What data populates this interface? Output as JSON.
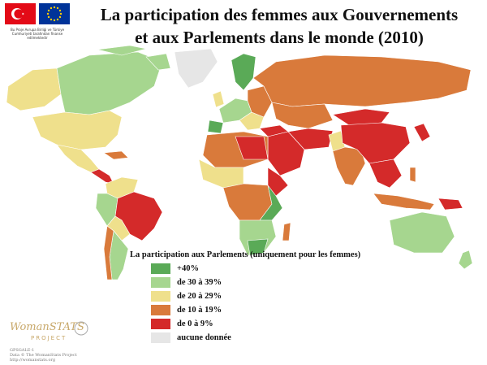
{
  "header": {
    "title_line1": "La participation des femmes aux Gouvernements",
    "title_line2": "et aux Parlements dans le monde (2010)",
    "logo_caption": "Bu Proje Avrupa Birliği ve Türkiye Cumhuriyeti tarafından finanse edilmektedir"
  },
  "colors": {
    "over40": "#5aaa57",
    "p30_39": "#a6d68f",
    "p20_29": "#efe08c",
    "p10_19": "#d97a3b",
    "p0_9": "#d42a2a",
    "no_data": "#e6e6e6",
    "ocean": "#ffffff"
  },
  "legend": {
    "title": "La participation aux Parlements (uniquement pour les femmes)",
    "items": [
      {
        "label": "+40%",
        "color": "#5aaa57"
      },
      {
        "label": "de 30 à 39%",
        "color": "#a6d68f"
      },
      {
        "label": "de 20 à 29%",
        "color": "#efe08c"
      },
      {
        "label": "de 10 à 19%",
        "color": "#d97a3b"
      },
      {
        "label": "de 0 à 9%",
        "color": "#d42a2a"
      },
      {
        "label": "aucune donnée",
        "color": "#e6e6e6"
      }
    ]
  },
  "footer": {
    "logo_text": "WomanSTATS",
    "logo_sub": "PROJECT",
    "line1": "GPSGALE-1",
    "line2": "Data © The WomanStats Project",
    "line3": "http://womanstats.org"
  }
}
